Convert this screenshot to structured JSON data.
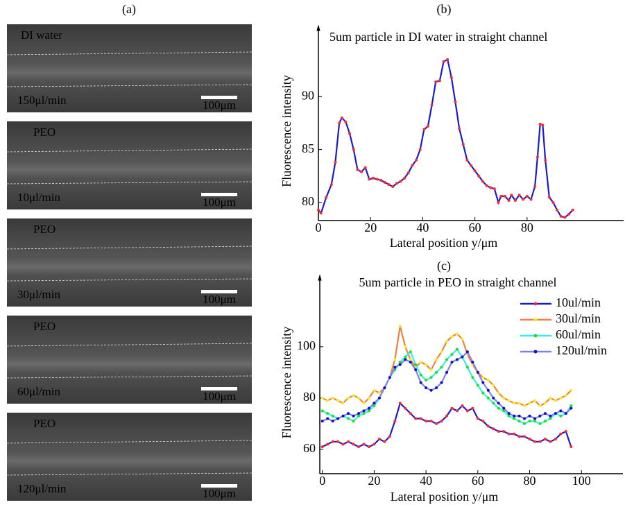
{
  "panel_a": {
    "label": "(a)",
    "images": [
      {
        "top_label": "DI water",
        "bottom_label": "150μl/min",
        "scale_bar": "100μm",
        "color": "#e01010"
      },
      {
        "top_label": "PEO",
        "bottom_label": "10μl/min",
        "scale_bar": "100μm",
        "color": "#e01010"
      },
      {
        "top_label": "PEO",
        "bottom_label": "30μl/min",
        "scale_bar": "100μm",
        "color": "#f0e020"
      },
      {
        "top_label": "PEO",
        "bottom_label": "60μl/min",
        "scale_bar": "100μm",
        "color": "#20e020"
      },
      {
        "top_label": "PEO",
        "bottom_label": "120μl/min",
        "scale_bar": "100μm",
        "color": "#1010e0"
      }
    ]
  },
  "chart_data": [
    {
      "type": "line",
      "label": "(b)",
      "title": "5um particle in DI water in straight channel",
      "x_label": "Lateral position y/μm",
      "y_label": "Fluorescence intensity",
      "x": [
        0,
        1,
        3,
        5,
        6.5,
        8,
        9,
        10.5,
        12,
        13.5,
        15,
        16.5,
        18,
        19.5,
        21,
        22.5,
        24,
        25.5,
        27,
        28.5,
        30,
        31.5,
        33,
        34.5,
        36,
        37.5,
        39,
        40.5,
        42,
        43.5,
        45,
        46.5,
        48,
        49.5,
        51,
        52.5,
        54,
        55.5,
        57,
        58.5,
        60,
        61.5,
        63,
        64.5,
        66,
        67.5,
        69,
        70,
        71.5,
        73,
        74,
        75.5,
        77,
        78.5,
        80,
        81.5,
        83,
        84,
        85,
        86,
        87,
        88.5,
        90,
        91.5,
        93,
        94.5,
        96,
        97.5
      ],
      "series": [
        {
          "color": "#1a1ad0",
          "marker_color": "#ff2a2a",
          "values": [
            79.3,
            79.0,
            80.5,
            81.7,
            83.8,
            87.5,
            88.0,
            87.6,
            86.5,
            85.0,
            83.1,
            82.9,
            83.3,
            82.2,
            82.3,
            82.2,
            82.1,
            81.9,
            81.7,
            81.5,
            81.8,
            82.0,
            82.3,
            82.8,
            83.5,
            84.0,
            85.0,
            86.9,
            87.2,
            89.2,
            91.4,
            91.5,
            93.3,
            93.5,
            91.8,
            89.5,
            87.0,
            85.5,
            84.0,
            83.5,
            83.0,
            82.5,
            82.0,
            81.6,
            81.4,
            81.3,
            80.0,
            80.6,
            80.6,
            80.2,
            80.7,
            80.2,
            80.7,
            80.3,
            80.6,
            80.3,
            81.5,
            84.3,
            87.4,
            87.3,
            84.0,
            80.5,
            80.0,
            79.3,
            78.7,
            78.6,
            78.9,
            79.3
          ]
        }
      ],
      "xlim": [
        0,
        117
      ],
      "ylim": [
        78.3,
        96.5
      ],
      "xticks": [
        0,
        20,
        40,
        60,
        80
      ],
      "yticks": [
        80,
        85,
        90
      ]
    },
    {
      "type": "line",
      "label": "(c)",
      "title": "5um particle in PEO in straight channel",
      "x_label": "Lateral position y/μm",
      "y_label": "Fluorescence intensity",
      "legend": "upper right",
      "x": [
        0,
        2,
        4,
        6,
        8,
        10,
        12,
        14,
        16,
        18,
        20,
        22,
        24,
        26,
        28,
        30,
        32,
        34,
        36,
        38,
        40,
        42,
        44,
        46,
        48,
        50,
        52,
        54,
        56,
        58,
        60,
        62,
        64,
        66,
        68,
        70,
        72,
        74,
        76,
        78,
        80,
        82,
        84,
        86,
        88,
        90,
        92,
        94,
        96
      ],
      "series": [
        {
          "name": "10ul/min",
          "color": "#1a1ad0",
          "marker_color": "#ff2a2a",
          "values": [
            61,
            62,
            63,
            63,
            62,
            63,
            62,
            61,
            62,
            61,
            62,
            64,
            63,
            65,
            71,
            78,
            76,
            74,
            72,
            72,
            71,
            71,
            70,
            71,
            73,
            76,
            75,
            77,
            75,
            76,
            72,
            71,
            69,
            68,
            67,
            67,
            66,
            66,
            65,
            65,
            64,
            63,
            63,
            64,
            63,
            64,
            66,
            67,
            61
          ]
        },
        {
          "name": "30ul/min",
          "color": "#f08040",
          "marker_color": "#f0f020",
          "values": [
            80,
            79,
            80,
            79,
            78,
            80,
            81,
            80,
            78,
            80,
            83,
            82,
            84,
            88,
            95,
            108,
            100,
            95,
            92,
            94,
            93,
            91,
            95,
            98,
            102,
            104,
            105,
            103,
            97,
            93,
            90,
            88,
            87,
            85,
            82,
            80,
            79,
            78,
            78,
            77,
            78,
            79,
            77,
            78,
            80,
            79,
            80,
            81,
            83
          ]
        },
        {
          "name": "60ul/min",
          "color": "#30f0f0",
          "marker_color": "#20e020",
          "values": [
            75,
            74,
            73,
            72,
            73,
            72,
            71,
            73,
            74,
            75,
            77,
            80,
            84,
            88,
            91,
            94,
            96,
            98,
            93,
            89,
            87,
            88,
            90,
            92,
            95,
            97,
            99,
            96,
            92,
            88,
            85,
            82,
            80,
            78,
            76,
            75,
            73,
            72,
            71,
            70,
            71,
            71,
            70,
            71,
            72,
            74,
            73,
            74,
            77
          ]
        },
        {
          "name": "120ul/min",
          "color": "#8080f0",
          "marker_color": "#1010c0",
          "values": [
            71,
            72,
            71,
            72,
            73,
            74,
            73,
            74,
            75,
            76,
            78,
            80,
            84,
            88,
            92,
            93,
            95,
            94,
            91,
            86,
            84,
            83,
            84,
            86,
            90,
            94,
            95,
            96,
            98,
            94,
            90,
            86,
            83,
            80,
            78,
            76,
            74,
            73,
            73,
            72,
            73,
            72,
            73,
            74,
            73,
            74,
            75,
            74,
            76
          ]
        }
      ],
      "xlim": [
        -1,
        116
      ],
      "ylim": [
        50.5,
        127
      ],
      "xticks": [
        0,
        20,
        40,
        60,
        80,
        100
      ],
      "yticks": [
        60,
        80,
        100
      ]
    }
  ]
}
